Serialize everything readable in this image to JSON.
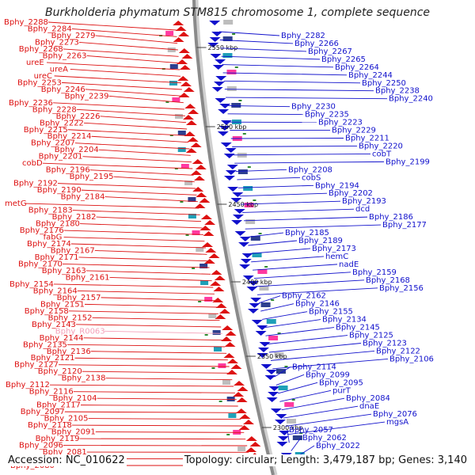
{
  "title": "Burkholderia phymatum STM815 chromosome 1, complete sequence",
  "footer": {
    "accession": "Accession: NC_010622",
    "summary": "Topology: circular; Length: 3,479,187 bp; Genes: 3,140"
  },
  "colors": {
    "forward": "#dd1111",
    "reverse": "#1111cc",
    "rna": "#f4a0b8",
    "backbone": "#8a8a8a",
    "tick_marker": "#2f8a2f"
  },
  "ticks": [
    "2550 kbp",
    "2500 kbp",
    "2450 kbp",
    "2400 kbp",
    "2350 kbp",
    "2300 kbp"
  ],
  "left_labels": [
    "Bphy_2288",
    "Bphy_2284",
    "Bphy_2279",
    "Bphy_2273",
    "Bphy_2268",
    "Bphy_2263",
    "ureE",
    "ureA",
    "ureC",
    "Bphy_2253",
    "Bphy_2246",
    "Bphy_2239",
    "Bphy_2236",
    "Bphy_2228",
    "Bphy_2226",
    "Bphy_2222",
    "Bphy_2215",
    "Bphy_2214",
    "Bphy_2207",
    "Bphy_2204",
    "Bphy_2201",
    "cobD",
    "Bphy_2196",
    "Bphy_2195",
    "Bphy_2192",
    "Bphy_2190",
    "Bphy_2184",
    "metG",
    "Bphy_2183",
    "Bphy_2182",
    "Bphy_2180",
    "Bphy_2176",
    "fabG",
    "Bphy_2174",
    "Bphy_2167",
    "Bphy_2171",
    "Bphy_2170",
    "Bphy_2163",
    "Bphy_2161",
    "Bphy_2154",
    "Bphy_2164",
    "Bphy_2157",
    "Bphy_2151",
    "Bphy_2158",
    "Bphy_2152",
    "Bphy_2143",
    "Bphy_R0063",
    "Bphy_2144",
    "Bphy_2135",
    "Bphy_2136",
    "Bphy_2121",
    "Bphy_2127",
    "Bphy_2120",
    "Bphy_2138",
    "Bphy_2112",
    "Bphy_2116",
    "Bphy_2104",
    "Bphy_2117",
    "Bphy_2097",
    "Bphy_2105",
    "Bphy_2118",
    "Bphy_2091",
    "Bphy_2119",
    "Bphy_2096",
    "Bphy_2081",
    "Bphy_2088",
    "Bphy_2080"
  ],
  "right_labels": [
    "Bphy_2282",
    "Bphy_2266",
    "Bphy_2267",
    "Bphy_2265",
    "Bphy_2264",
    "Bphy_2244",
    "Bphy_2250",
    "Bphy_2238",
    "Bphy_2240",
    "Bphy_2230",
    "Bphy_2235",
    "Bphy_2223",
    "Bphy_2229",
    "Bphy_2211",
    "Bphy_2220",
    "cobT",
    "Bphy_2199",
    "Bphy_2208",
    "cobS",
    "Bphy_2194",
    "Bphy_2202",
    "Bphy_2193",
    "dcd",
    "Bphy_2186",
    "Bphy_2177",
    "Bphy_2185",
    "Bphy_2189",
    "Bphy_2173",
    "hemC",
    "nadE",
    "Bphy_2159",
    "Bphy_2168",
    "Bphy_2156",
    "Bphy_2162",
    "Bphy_2146",
    "Bphy_2155",
    "Bphy_2134",
    "Bphy_2145",
    "Bphy_2125",
    "Bphy_2123",
    "Bphy_2122",
    "Bphy_2106",
    "Bphy_2114",
    "Bphy_2099",
    "Bphy_2095",
    "purT",
    "Bphy_2084",
    "dnaE",
    "Bphy_2076",
    "mgsA",
    "Bphy_2057",
    "Bphy_2062",
    "Bphy_2022"
  ]
}
